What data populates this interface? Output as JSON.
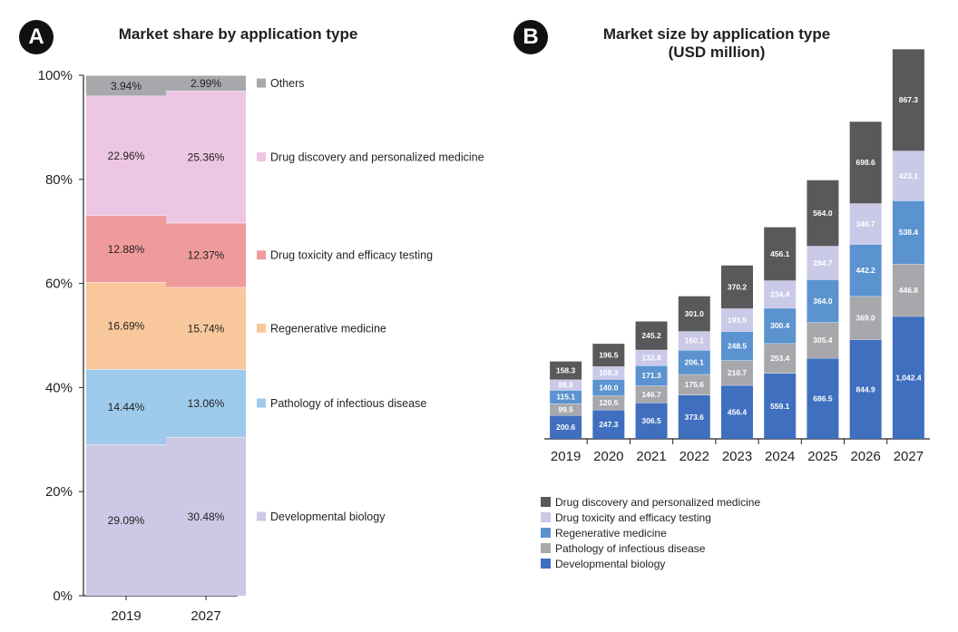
{
  "panel_a": {
    "badge": "A",
    "title": "Market share by application type"
  },
  "panel_b": {
    "badge": "B",
    "title_line1": "Market size by application type",
    "title_line2": "(USD million)"
  },
  "colors": {
    "a_others": "#a6a8ab",
    "a_drug_discovery": "#edc6e3",
    "a_drug_toxicity": "#f09b9b",
    "a_regenerative": "#f8c89c",
    "a_pathology": "#9ecbec",
    "a_developmental": "#cbc9e6",
    "b_drug_discovery": "#58595b",
    "b_drug_toxicity": "#cbc9e8",
    "b_regenerative": "#5b93d0",
    "b_pathology": "#a6a8ab",
    "b_developmental": "#3f6fbe",
    "axis": "#231f20"
  },
  "chart_data": [
    {
      "type": "bar",
      "stacked": true,
      "title": "Market share by application type",
      "categories": [
        "2019",
        "2027"
      ],
      "y_ticks": [
        "0%",
        "20%",
        "40%",
        "60%",
        "80%",
        "100%"
      ],
      "ylim": [
        0,
        100
      ],
      "legend_position": "right",
      "series": [
        {
          "name": "Developmental biology",
          "values": [
            29.09,
            30.48
          ],
          "labels": [
            "29.09%",
            "30.48%"
          ],
          "color_key": "a_developmental"
        },
        {
          "name": "Pathology of infectious disease",
          "values": [
            14.44,
            13.06
          ],
          "labels": [
            "14.44%",
            "13.06%"
          ],
          "color_key": "a_pathology"
        },
        {
          "name": "Regenerative medicine",
          "values": [
            16.69,
            15.74
          ],
          "labels": [
            "16.69%",
            "15.74%"
          ],
          "color_key": "a_regenerative"
        },
        {
          "name": "Drug toxicity and efficacy testing",
          "values": [
            12.88,
            12.37
          ],
          "labels": [
            "12.88%",
            "12.37%"
          ],
          "color_key": "a_drug_toxicity"
        },
        {
          "name": "Drug discovery and personalized medicine",
          "values": [
            22.96,
            25.36
          ],
          "labels": [
            "22.96%",
            "25.36%"
          ],
          "color_key": "a_drug_discovery"
        },
        {
          "name": "Others",
          "values": [
            3.94,
            2.99
          ],
          "labels": [
            "3.94%",
            "2.99%"
          ],
          "color_key": "a_others"
        }
      ]
    },
    {
      "type": "bar",
      "stacked": true,
      "title": "Market size by application type (USD million)",
      "categories": [
        "2019",
        "2020",
        "2021",
        "2022",
        "2023",
        "2024",
        "2025",
        "2026",
        "2027"
      ],
      "y_axis_visible": false,
      "legend_position": "bottom",
      "series": [
        {
          "name": "Developmental biology",
          "values": [
            200.6,
            247.3,
            306.5,
            373.6,
            456.4,
            559.1,
            686.5,
            844.9,
            1042.4
          ],
          "labels": [
            "200.6",
            "247.3",
            "306.5",
            "373.6",
            "456.4",
            "559.1",
            "686.5",
            "844.9",
            "1,042.4"
          ],
          "color_key": "b_developmental"
        },
        {
          "name": "Pathology of infectious disease",
          "values": [
            99.5,
            120.5,
            146.7,
            175.6,
            210.7,
            253.4,
            305.4,
            369.0,
            446.8
          ],
          "labels": [
            "99.5",
            "120.5",
            "146.7",
            "175.6",
            "210.7",
            "253.4",
            "305.4",
            "369.0",
            "446.8"
          ],
          "color_key": "b_pathology"
        },
        {
          "name": "Regenerative medicine",
          "values": [
            115.1,
            140.0,
            171.3,
            206.1,
            248.5,
            300.4,
            364.0,
            442.2,
            538.4
          ],
          "labels": [
            "115.1",
            "140.0",
            "171.3",
            "206.1",
            "248.5",
            "300.4",
            "364.0",
            "442.2",
            "538.4"
          ],
          "color_key": "b_regenerative"
        },
        {
          "name": "Drug toxicity and efficacy testing",
          "values": [
            88.8,
            108.3,
            132.8,
            160.1,
            193.5,
            234.4,
            284.7,
            346.7,
            423.1
          ],
          "labels": [
            "88.8",
            "108.3",
            "132.8",
            "160.1",
            "193.5",
            "234.4",
            "284.7",
            "346.7",
            "423.1"
          ],
          "color_key": "b_drug_toxicity"
        },
        {
          "name": "Drug discovery and personalized medicine",
          "values": [
            158.3,
            196.5,
            245.2,
            301.0,
            370.2,
            456.1,
            564.0,
            698.6,
            867.3
          ],
          "labels": [
            "158.3",
            "196.5",
            "245.2",
            "301.0",
            "370.2",
            "456.1",
            "564.0",
            "698.6",
            "867.3"
          ],
          "color_key": "b_drug_discovery"
        }
      ],
      "legend_order": [
        "Drug discovery and personalized medicine",
        "Drug toxicity and efficacy testing",
        "Regenerative medicine",
        "Pathology of infectious disease",
        "Developmental biology"
      ]
    }
  ]
}
